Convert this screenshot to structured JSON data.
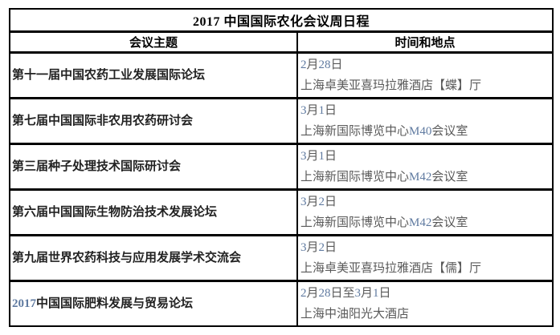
{
  "page": {
    "title": "2017 中国国际农化会议周日程"
  },
  "table": {
    "headers": {
      "topic": "会议主题",
      "time": "时间和地点"
    },
    "rows": [
      {
        "topic": "第十一届中国农药工业发展国际论坛",
        "date": "2月28日",
        "venue": "上海卓美亚喜玛拉雅酒店【蝶】厅"
      },
      {
        "topic": "第七届中国国际非农用农药研讨会",
        "date": "3月1日",
        "venue": "上海新国际博览中心M40会议室"
      },
      {
        "topic": "第三届种子处理技术国际研讨会",
        "date": "3月1日",
        "venue": "上海新国际博览中心M42会议室"
      },
      {
        "topic": "第六届中国国际生物防治技术发展论坛",
        "date": "3月2日",
        "venue": "上海新国际博览中心M42会议室"
      },
      {
        "topic": "第九届世界农药科技与应用发展学术交流会",
        "date": "3月2日",
        "venue": "上海卓美亚喜玛拉雅酒店【儒】厅"
      },
      {
        "topic": "2017中国国际肥料发展与贸易论坛",
        "date": "2月28日至3月1日",
        "venue": "上海中油阳光大酒店"
      }
    ],
    "colors": {
      "border": "#000000",
      "title_text": "#000000",
      "topic_text": "#222222",
      "time_text": "#595959",
      "latin_tint": "#5f7aa0"
    }
  }
}
